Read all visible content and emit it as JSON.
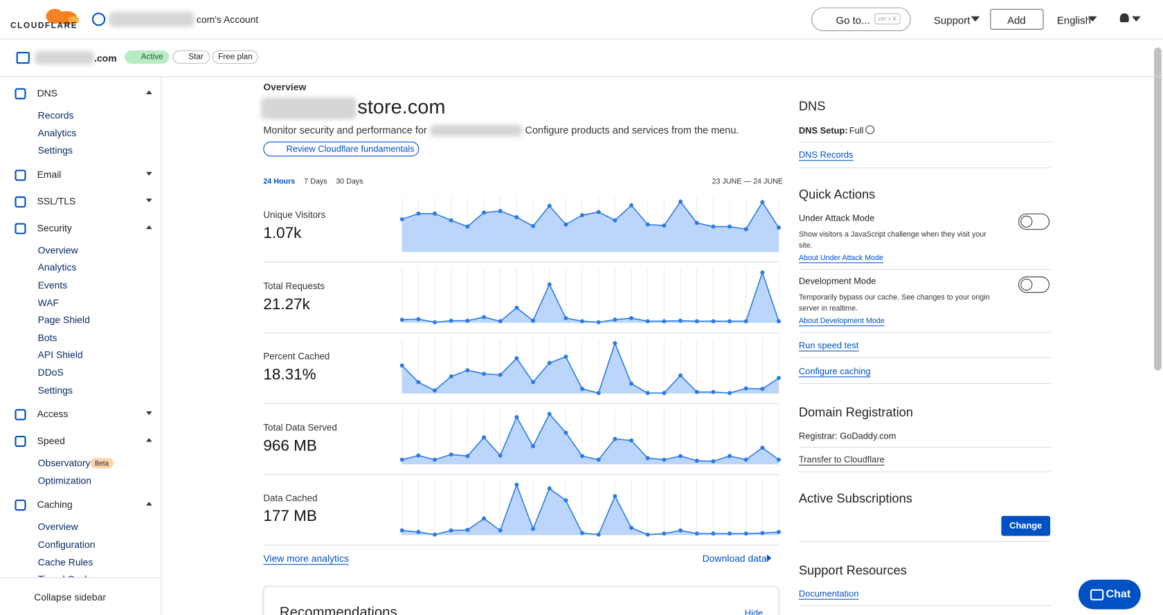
{
  "header": {
    "logo": "CLOUDFLARE",
    "account": "com's Account",
    "goto": "Go to...",
    "shortcut": "ctrl + K",
    "support": "Support",
    "add": "Add",
    "language": "English"
  },
  "zone": {
    "domain": ".com",
    "status": "Active",
    "star": "Star",
    "plan": "Free plan"
  },
  "sidebar": {
    "sections": [
      {
        "label": "DNS",
        "items": [
          "Records",
          "Analytics",
          "Settings"
        ]
      },
      {
        "label": "Email",
        "items": []
      },
      {
        "label": "SSL/TLS",
        "items": []
      },
      {
        "label": "Security",
        "items": [
          "Overview",
          "Analytics",
          "Events",
          "WAF",
          "Page Shield",
          "Bots",
          "API Shield",
          "DDoS",
          "Settings"
        ]
      },
      {
        "label": "Access",
        "items": []
      },
      {
        "label": "Speed",
        "items": [
          "Observatory",
          "Optimization"
        ]
      },
      {
        "label": "Caching",
        "items": [
          "Overview",
          "Configuration",
          "Cache Rules",
          "Tiered Cache"
        ]
      }
    ],
    "badge": "Beta",
    "collapse": "Collapse sidebar"
  },
  "overview": {
    "label": "Overview",
    "domain": "store.com",
    "desc1": "Monitor security and performance for",
    "desc2": "Configure products and services from the menu.",
    "fundamentals": "Review Cloudflare fundamentals",
    "ranges": [
      "24 Hours",
      "7 Days",
      "30 Days"
    ],
    "date_range": "23 JUNE — 24 JUNE",
    "metrics": [
      {
        "name": "Unique Visitors",
        "value": "1.07k",
        "points": [
          63,
          74,
          74,
          61,
          49,
          76,
          79,
          67,
          50,
          89,
          53,
          71,
          77,
          61,
          90,
          53,
          51,
          97,
          56,
          49,
          49,
          44,
          96,
          47
        ]
      },
      {
        "name": "Total Requests",
        "value": "21.27k",
        "points": [
          6,
          7,
          1,
          4,
          4,
          11,
          3,
          29,
          4,
          74,
          9,
          3,
          1,
          6,
          9,
          3,
          3,
          4,
          3,
          3,
          3,
          3,
          97,
          3
        ]
      },
      {
        "name": "Percent Cached",
        "value": "18.31%",
        "points": [
          54,
          22,
          6,
          33,
          45,
          38,
          36,
          68,
          22,
          59,
          71,
          9,
          1,
          97,
          19,
          1,
          1,
          35,
          3,
          3,
          1,
          10,
          9,
          30
        ]
      },
      {
        "name": "Total Data Served",
        "value": "966 MB",
        "points": [
          9,
          17,
          9,
          19,
          16,
          52,
          17,
          91,
          35,
          97,
          61,
          16,
          9,
          49,
          46,
          12,
          9,
          16,
          7,
          6,
          16,
          9,
          32,
          9
        ]
      },
      {
        "name": "Data Cached",
        "value": "177 MB",
        "points": [
          9,
          6,
          1,
          9,
          10,
          32,
          9,
          97,
          12,
          90,
          67,
          4,
          1,
          75,
          14,
          1,
          3,
          9,
          3,
          3,
          3,
          3,
          4,
          6
        ]
      }
    ],
    "more": "View more analytics",
    "download": "Download data",
    "recommendations": "Recommendations",
    "hide": "Hide"
  },
  "right": {
    "dns": {
      "title": "DNS",
      "setup_label": "DNS Setup:",
      "setup_value": "Full",
      "records": "DNS Records"
    },
    "quick": {
      "title": "Quick Actions",
      "actions": [
        {
          "name": "Under Attack Mode",
          "desc": "Show visitors a JavaScript challenge when they visit your site.",
          "link": "About Under Attack Mode"
        },
        {
          "name": "Development Mode",
          "desc": "Temporarily bypass our cache. See changes to your origin server in realtime.",
          "link": "About Development Mode"
        }
      ],
      "links": [
        "Run speed test",
        "Configure caching"
      ]
    },
    "domain_reg": {
      "title": "Domain Registration",
      "registrar": "Registrar: GoDaddy.com",
      "transfer": "Transfer to Cloudflare"
    },
    "subs": {
      "title": "Active Subscriptions",
      "change": "Change"
    },
    "support": {
      "title": "Support Resources",
      "links": [
        "Documentation"
      ]
    }
  },
  "chat": "Chat"
}
